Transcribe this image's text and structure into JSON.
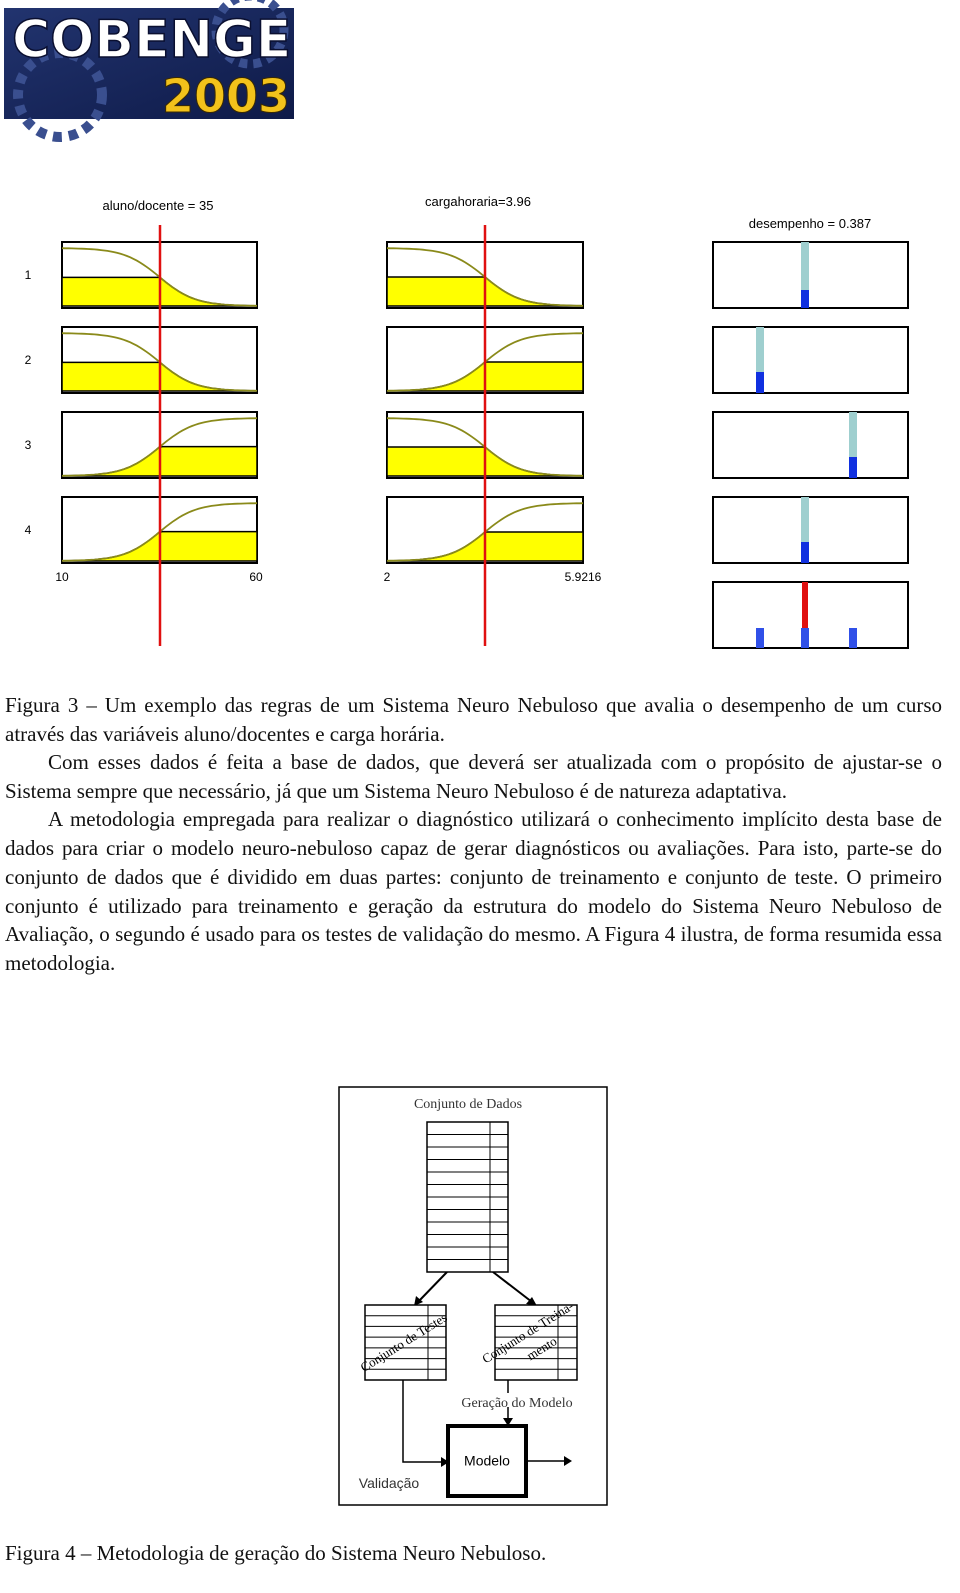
{
  "header": {
    "logo_title": "COBENGE",
    "logo_year": "2003"
  },
  "figure3": {
    "inputs": [
      {
        "label": "aluno/docente = 35",
        "min": "10",
        "max": "60"
      },
      {
        "label": "cargahoraria=3.96",
        "min": "2",
        "max": "5.9216"
      }
    ],
    "output_label": "desempenho = 0.387",
    "rules": [
      "1",
      "2",
      "3",
      "4"
    ],
    "caption": "Figura 3 – Um exemplo das regras de um Sistema Neuro Nebuloso que avalia o desempenho de um curso através das variáveis aluno/docentes e carga horária."
  },
  "body": {
    "paragraphs": [
      "Com esses dados é feita a base de dados, que deverá ser atualizada com o propósito de ajustar-se o Sistema sempre que necessário, já que um Sistema Neuro Nebuloso é de natureza adaptativa.",
      "A metodologia empregada para realizar o diagnóstico utilizará o conhecimento implícito desta base de dados para criar o modelo neuro-nebuloso capaz de gerar diagnósticos ou avaliações. Para isto, parte-se do conjunto de dados que é dividido em duas partes: conjunto de treinamento e conjunto de teste. O primeiro conjunto é utilizado para treinamento e geração da estrutura do modelo do Sistema Neuro Nebuloso de Avaliação, o segundo é usado para os testes de validação do mesmo. A Figura 4 ilustra, de forma resumida essa metodologia."
    ]
  },
  "figure4": {
    "title": "Conjunto de Dados",
    "test_set": "Conjunto de Testes",
    "training_set": [
      "Conjunto de Treina-",
      "mento"
    ],
    "model_generation": "Geração do Modelo",
    "model": "Modelo",
    "validation": "Validação",
    "caption": "Figura 4 – Metodologia de geração do Sistema Neuro Nebuloso."
  }
}
